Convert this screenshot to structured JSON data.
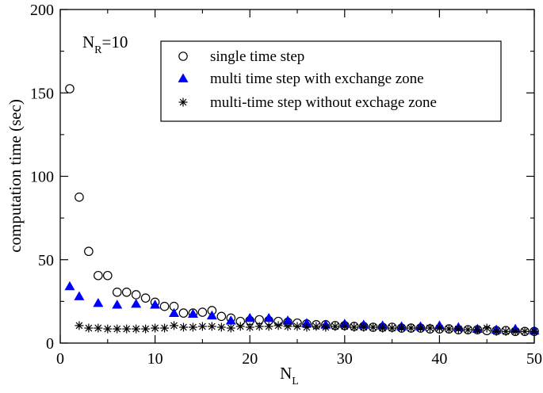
{
  "chart_data": {
    "type": "scatter",
    "title": "",
    "xlabel": "N",
    "xlabel_sub": "L",
    "ylabel": "computation time (sec)",
    "xlim": [
      0,
      50
    ],
    "ylim": [
      0,
      200
    ],
    "x_ticks": [
      0,
      10,
      20,
      30,
      40,
      50
    ],
    "y_ticks": [
      0,
      50,
      100,
      150,
      200
    ],
    "grid": false,
    "legend_position": "top-right",
    "annotation": {
      "main": "N",
      "sub": "R",
      "rest": "=10"
    },
    "series": [
      {
        "name": "single time step",
        "marker": "circle-open",
        "color": "#000000",
        "x": [
          1,
          2,
          3,
          4,
          5,
          6,
          7,
          8,
          9,
          10,
          11,
          12,
          13,
          14,
          15,
          16,
          17,
          18,
          19,
          20,
          21,
          22,
          23,
          24,
          25,
          26,
          27,
          28,
          29,
          30,
          31,
          32,
          33,
          34,
          35,
          36,
          37,
          38,
          39,
          40,
          41,
          42,
          43,
          44,
          45,
          46,
          47,
          48,
          49,
          50
        ],
        "y": [
          152.5,
          87.5,
          55,
          40.5,
          40.5,
          30.5,
          30.5,
          29,
          27,
          24.5,
          22,
          22,
          18,
          18,
          18.5,
          19.5,
          16,
          15,
          13,
          13.5,
          14,
          13.5,
          13,
          12.5,
          12,
          11.5,
          11,
          11,
          10.5,
          10.5,
          10,
          10,
          9.5,
          9.5,
          9.5,
          9,
          9,
          9,
          8.5,
          8.5,
          8.5,
          8,
          8,
          8,
          7.5,
          7.5,
          7.5,
          7,
          7,
          7
        ]
      },
      {
        "name": "multi time step with exchange zone",
        "marker": "triangle-filled",
        "color": "#0000ff",
        "x": [
          1,
          2,
          4,
          6,
          8,
          10,
          12,
          14,
          16,
          18,
          20,
          22,
          24,
          26,
          28,
          30,
          32,
          34,
          36,
          38,
          40,
          42,
          44,
          46,
          48,
          50
        ],
        "y": [
          34,
          28,
          24,
          23,
          23.5,
          23,
          18,
          17.5,
          16.5,
          13.5,
          15,
          15,
          13.5,
          12,
          11,
          11.5,
          11,
          10.5,
          10,
          10,
          10.5,
          9.5,
          8.5,
          8,
          8.5,
          7.5
        ]
      },
      {
        "name": "multi-time step without exchage zone",
        "marker": "asterisk",
        "color": "#000000",
        "x": [
          2,
          3,
          4,
          5,
          6,
          7,
          8,
          9,
          10,
          11,
          12,
          13,
          14,
          15,
          16,
          17,
          18,
          19,
          20,
          21,
          22,
          23,
          24,
          25,
          26,
          27,
          28,
          29,
          30,
          31,
          32,
          33,
          34,
          35,
          36,
          37,
          38,
          39,
          40,
          41,
          42,
          43,
          44,
          45,
          46,
          47,
          48,
          49,
          50
        ],
        "y": [
          10.5,
          9,
          9,
          8.5,
          8.5,
          8.5,
          8.5,
          8.5,
          9,
          9,
          10.5,
          9.5,
          9.5,
          10,
          10,
          9.5,
          9,
          10,
          9.5,
          10,
          10,
          10.5,
          10,
          10,
          9.5,
          10,
          9.5,
          10,
          10,
          9.5,
          9.5,
          9.5,
          9,
          9,
          9,
          9,
          9,
          9,
          9,
          8.5,
          8.5,
          8,
          8,
          9,
          7,
          7,
          7,
          7,
          7
        ]
      }
    ]
  }
}
